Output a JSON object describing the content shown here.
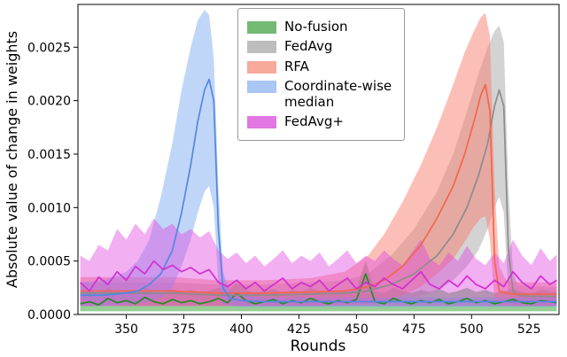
{
  "figure": {
    "background": "#ffffff",
    "spine_color": "#000000"
  },
  "chart_data": {
    "type": "line",
    "title": "",
    "xlabel": "Rounds",
    "ylabel": "Absolute value of change in weights",
    "xlim": [
      329,
      538
    ],
    "ylim": [
      0,
      0.0029
    ],
    "x_ticks": [
      350,
      375,
      400,
      425,
      450,
      475,
      500,
      525
    ],
    "y_ticks": [
      0.0,
      0.0005,
      0.001,
      0.0015,
      0.002,
      0.0025
    ],
    "grid": false,
    "legend_position": "upper center-left",
    "series": [
      {
        "key": "no-fusion",
        "name": "No-fusion",
        "line_color": "#228b22",
        "band_color": "#2ca02c",
        "band_opacity": 0.5,
        "swatch_color": "#74b974",
        "x": [
          330,
          334,
          338,
          342,
          346,
          350,
          354,
          358,
          362,
          366,
          370,
          374,
          378,
          382,
          386,
          390,
          394,
          398,
          402,
          406,
          410,
          414,
          418,
          422,
          426,
          430,
          434,
          438,
          442,
          446,
          450,
          454,
          458,
          462,
          466,
          470,
          474,
          478,
          482,
          486,
          490,
          494,
          498,
          502,
          506,
          510,
          514,
          518,
          522,
          526,
          530,
          534,
          537
        ],
        "y": [
          0.0001,
          0.00012,
          9e-05,
          0.00015,
          0.00011,
          0.00013,
          0.0001,
          0.00016,
          0.00012,
          0.0001,
          0.00014,
          0.00011,
          0.00013,
          0.0001,
          0.00012,
          0.00015,
          0.00011,
          0.0002,
          0.00013,
          0.0001,
          0.00012,
          0.00014,
          0.0001,
          0.00013,
          0.00011,
          0.00015,
          0.00012,
          0.0001,
          0.00013,
          0.00011,
          0.00014,
          0.00038,
          0.00012,
          0.0001,
          0.00015,
          0.00012,
          0.0001,
          0.00013,
          0.00011,
          0.00014,
          0.0001,
          0.00012,
          0.00015,
          0.00011,
          0.00013,
          0.0001,
          0.00012,
          0.00014,
          0.00011,
          0.0001,
          0.00013,
          0.00012,
          0.00011
        ],
        "band_upper": [
          0.0002,
          0.00022,
          0.00019,
          0.00025,
          0.00021,
          0.00023,
          0.0002,
          0.00026,
          0.00022,
          0.0002,
          0.00024,
          0.00021,
          0.00023,
          0.0002,
          0.00022,
          0.00025,
          0.00021,
          0.0003,
          0.00023,
          0.0002,
          0.00022,
          0.00024,
          0.0002,
          0.00023,
          0.00021,
          0.00025,
          0.00022,
          0.0002,
          0.00023,
          0.00021,
          0.00024,
          0.0005,
          0.00022,
          0.0002,
          0.00025,
          0.00022,
          0.0002,
          0.00023,
          0.00021,
          0.00024,
          0.0002,
          0.00022,
          0.00025,
          0.00021,
          0.00023,
          0.0002,
          0.00022,
          0.00024,
          0.00021,
          0.0002,
          0.00023,
          0.00022,
          0.00021
        ],
        "band_lower": 3e-05
      },
      {
        "key": "fedavg",
        "name": "FedAvg",
        "line_color": "#8c8c8c",
        "band_color": "#9e9e9e",
        "band_opacity": 0.45,
        "swatch_color": "#bdbdbd",
        "x": [
          330,
          350,
          370,
          390,
          410,
          430,
          445,
          455,
          465,
          475,
          485,
          492,
          498,
          503,
          507,
          510,
          512,
          514,
          516,
          518,
          520,
          525,
          530,
          537
        ],
        "y": [
          0.0002,
          0.0002,
          0.0002,
          0.00018,
          0.00018,
          0.00019,
          0.0002,
          0.00022,
          0.00028,
          0.00038,
          0.00055,
          0.00075,
          0.001,
          0.0013,
          0.0016,
          0.00195,
          0.0021,
          0.00195,
          0.0006,
          0.00022,
          0.00018,
          0.00017,
          0.00017,
          0.00017
        ],
        "band_upper": [
          0.0003,
          0.0003,
          0.0003,
          0.00028,
          0.00028,
          0.0003,
          0.00032,
          0.00038,
          0.00055,
          0.0008,
          0.00115,
          0.0015,
          0.0019,
          0.00225,
          0.0025,
          0.00265,
          0.0027,
          0.00255,
          0.0012,
          0.0004,
          0.00028,
          0.00026,
          0.00026,
          0.00026
        ],
        "band_lower": [
          8e-05,
          8e-05,
          8e-05,
          8e-05,
          8e-05,
          8e-05,
          9e-05,
          0.0001,
          0.00012,
          0.00016,
          0.00022,
          0.00032,
          0.00045,
          0.0006,
          0.0008,
          0.001,
          0.0011,
          0.00095,
          0.0002,
          0.0001,
          8e-05,
          8e-05,
          8e-05,
          8e-05
        ]
      },
      {
        "key": "rfa",
        "name": "RFA",
        "line_color": "#f4654c",
        "band_color": "#fa8072",
        "band_opacity": 0.5,
        "swatch_color": "#f7a99c",
        "x": [
          330,
          350,
          370,
          390,
          410,
          430,
          445,
          455,
          462,
          470,
          478,
          485,
          492,
          497,
          501,
          504,
          506,
          508,
          510,
          512,
          515,
          520,
          530,
          537
        ],
        "y": [
          0.00022,
          0.00022,
          0.00022,
          0.0002,
          0.0002,
          0.00021,
          0.00022,
          0.00026,
          0.00032,
          0.00045,
          0.00065,
          0.0009,
          0.0012,
          0.0015,
          0.0018,
          0.00205,
          0.00215,
          0.0019,
          0.0005,
          0.00022,
          0.0002,
          0.00019,
          0.00019,
          0.00019
        ],
        "band_upper": [
          0.00035,
          0.00035,
          0.00035,
          0.00032,
          0.00032,
          0.00034,
          0.0004,
          0.00055,
          0.00075,
          0.00105,
          0.0014,
          0.00175,
          0.00215,
          0.00245,
          0.00265,
          0.00278,
          0.00282,
          0.0026,
          0.0012,
          0.00045,
          0.00032,
          0.0003,
          0.0003,
          0.0003
        ],
        "band_lower": [
          8e-05,
          8e-05,
          8e-05,
          8e-05,
          8e-05,
          8e-05,
          9e-05,
          0.0001,
          0.00013,
          0.00018,
          0.00026,
          0.00038,
          0.00052,
          0.00068,
          0.00082,
          0.0009,
          0.00092,
          0.0007,
          0.00012,
          8e-05,
          8e-05,
          8e-05,
          8e-05,
          8e-05
        ]
      },
      {
        "key": "cwmedian",
        "name": "Coordinate-wise\n median",
        "line_color": "#5288e0",
        "band_color": "#74a4f0",
        "band_opacity": 0.45,
        "swatch_color": "#aac6f2",
        "x": [
          330,
          340,
          350,
          355,
          360,
          365,
          370,
          374,
          378,
          381,
          384,
          386,
          388,
          390,
          392,
          395,
          400,
          410,
          420,
          440,
          460,
          480,
          500,
          520,
          537
        ],
        "y": [
          0.00018,
          0.00018,
          0.0002,
          0.00022,
          0.00028,
          0.00038,
          0.0006,
          0.00095,
          0.0014,
          0.0018,
          0.0021,
          0.0022,
          0.002,
          0.0008,
          0.00025,
          0.00015,
          0.00013,
          0.00012,
          0.00012,
          0.00012,
          0.00012,
          0.00012,
          0.00012,
          0.00012,
          0.00012
        ],
        "band_upper": [
          0.0003,
          0.00032,
          0.0004,
          0.0005,
          0.0007,
          0.0011,
          0.0016,
          0.0021,
          0.0025,
          0.00275,
          0.00285,
          0.0028,
          0.0024,
          0.0012,
          0.0004,
          0.00022,
          0.00018,
          0.00016,
          0.00016,
          0.00016,
          0.00016,
          0.00016,
          0.00016,
          0.00016,
          0.00016
        ],
        "band_lower": [
          8e-05,
          8e-05,
          9e-05,
          0.0001,
          0.00012,
          0.00016,
          0.00025,
          0.00045,
          0.0007,
          0.00095,
          0.00115,
          0.0012,
          0.001,
          0.0003,
          0.0001,
          8e-05,
          7e-05,
          7e-05,
          7e-05,
          7e-05,
          7e-05,
          7e-05,
          7e-05,
          7e-05,
          7e-05
        ]
      },
      {
        "key": "fedavgplus",
        "name": "FedAvg+",
        "line_color": "#d12fd1",
        "band_color": "#e040e0",
        "band_opacity": 0.42,
        "swatch_color": "#e277e2",
        "x": [
          330,
          334,
          338,
          342,
          346,
          350,
          354,
          358,
          362,
          366,
          370,
          374,
          378,
          382,
          386,
          390,
          394,
          398,
          402,
          406,
          410,
          414,
          418,
          422,
          426,
          430,
          434,
          438,
          442,
          446,
          450,
          454,
          458,
          462,
          466,
          470,
          474,
          478,
          482,
          486,
          490,
          494,
          498,
          502,
          506,
          510,
          514,
          518,
          522,
          526,
          530,
          534,
          537
        ],
        "y": [
          0.0003,
          0.00022,
          0.00035,
          0.00028,
          0.0004,
          0.00032,
          0.00045,
          0.00038,
          0.0005,
          0.00042,
          0.00046,
          0.0004,
          0.00044,
          0.00038,
          0.00042,
          0.0003,
          0.00026,
          0.00032,
          0.00024,
          0.0003,
          0.00022,
          0.00028,
          0.00034,
          0.00024,
          0.0003,
          0.00026,
          0.00032,
          0.00022,
          0.00028,
          0.00034,
          0.00024,
          0.0003,
          0.00026,
          0.00034,
          0.00028,
          0.00024,
          0.00032,
          0.0004,
          0.00028,
          0.00024,
          0.00032,
          0.00026,
          0.00036,
          0.00028,
          0.00024,
          0.00032,
          0.00026,
          0.0004,
          0.0003,
          0.00024,
          0.00036,
          0.00028,
          0.00032
        ],
        "band_upper": [
          0.00055,
          0.0005,
          0.00065,
          0.0006,
          0.0008,
          0.0007,
          0.00085,
          0.00075,
          0.0009,
          0.0008,
          0.00085,
          0.00075,
          0.0008,
          0.00072,
          0.00078,
          0.0006,
          0.00052,
          0.00058,
          0.00048,
          0.00055,
          0.00045,
          0.00052,
          0.0006,
          0.00048,
          0.00055,
          0.0005,
          0.00058,
          0.00045,
          0.00052,
          0.0006,
          0.00048,
          0.00055,
          0.0005,
          0.0006,
          0.00052,
          0.00046,
          0.00058,
          0.0007,
          0.00052,
          0.00046,
          0.00058,
          0.0005,
          0.00064,
          0.00052,
          0.00046,
          0.00058,
          0.00048,
          0.0007,
          0.00055,
          0.00046,
          0.00062,
          0.0005,
          0.00056
        ],
        "band_lower": 8e-05
      }
    ]
  }
}
